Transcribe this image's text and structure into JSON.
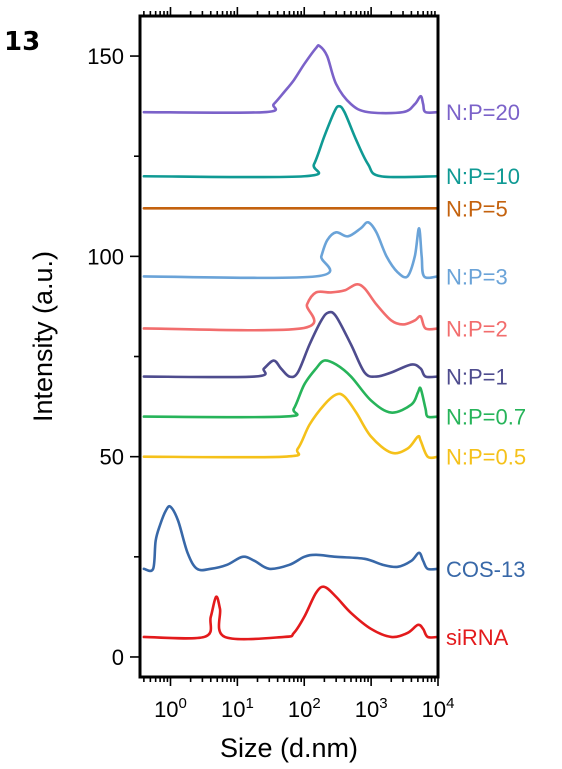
{
  "chart_data": {
    "type": "line",
    "panel_label": "13",
    "xlabel": "Size (d.nm)",
    "ylabel": "Intensity (a.u.)",
    "x_scale": "log",
    "xlim": [
      0.35,
      10000
    ],
    "ylim": [
      -5,
      160
    ],
    "x_ticks": [
      {
        "value": 1,
        "base": "10",
        "exp": "0"
      },
      {
        "value": 10,
        "base": "10",
        "exp": "1"
      },
      {
        "value": 100,
        "base": "10",
        "exp": "2"
      },
      {
        "value": 1000,
        "base": "10",
        "exp": "3"
      },
      {
        "value": 10000,
        "base": "10",
        "exp": "4"
      }
    ],
    "y_ticks": [
      {
        "value": 0,
        "label": "0"
      },
      {
        "value": 50,
        "label": "50"
      },
      {
        "value": 100,
        "label": "100"
      },
      {
        "value": 150,
        "label": "150"
      }
    ],
    "grid": false,
    "legend": "labels at right end of each curve",
    "series": [
      {
        "name": "siRNA",
        "color": "#e31a1c",
        "label_y": 5,
        "points": [
          [
            0.4,
            5
          ],
          [
            3.2,
            5
          ],
          [
            4.0,
            10
          ],
          [
            4.8,
            15
          ],
          [
            5.5,
            12
          ],
          [
            6.5,
            5
          ],
          [
            50,
            5
          ],
          [
            70,
            6
          ],
          [
            100,
            10
          ],
          [
            150,
            16
          ],
          [
            200,
            17.5
          ],
          [
            300,
            15
          ],
          [
            500,
            11
          ],
          [
            1000,
            7
          ],
          [
            2000,
            5
          ],
          [
            3500,
            6
          ],
          [
            5000,
            8
          ],
          [
            6000,
            7
          ],
          [
            7000,
            5
          ],
          [
            10000,
            5
          ]
        ]
      },
      {
        "name": "COS-13",
        "color": "#3868a8",
        "label_y": 22,
        "points": [
          [
            0.4,
            22
          ],
          [
            0.55,
            22
          ],
          [
            0.6,
            29
          ],
          [
            0.7,
            33
          ],
          [
            0.85,
            36.5
          ],
          [
            1.0,
            37.5
          ],
          [
            1.3,
            34
          ],
          [
            1.8,
            26
          ],
          [
            2.5,
            22
          ],
          [
            4,
            22
          ],
          [
            7,
            23
          ],
          [
            12,
            25
          ],
          [
            18,
            24
          ],
          [
            30,
            22
          ],
          [
            60,
            23
          ],
          [
            100,
            25
          ],
          [
            150,
            25.5
          ],
          [
            300,
            25
          ],
          [
            800,
            24.5
          ],
          [
            1500,
            23
          ],
          [
            2500,
            22.5
          ],
          [
            4000,
            24
          ],
          [
            5200,
            26
          ],
          [
            6000,
            24
          ],
          [
            7000,
            22
          ],
          [
            10000,
            22
          ]
        ]
      },
      {
        "name": "N:P=0.5",
        "color": "#f5c11a",
        "label_y": 50,
        "points": [
          [
            0.4,
            50
          ],
          [
            50,
            50
          ],
          [
            80,
            52
          ],
          [
            120,
            58
          ],
          [
            200,
            63
          ],
          [
            300,
            65.5
          ],
          [
            400,
            65
          ],
          [
            600,
            61
          ],
          [
            1000,
            55
          ],
          [
            2000,
            51
          ],
          [
            3500,
            52
          ],
          [
            5000,
            55
          ],
          [
            5500,
            54
          ],
          [
            7000,
            50
          ],
          [
            10000,
            50
          ]
        ]
      },
      {
        "name": "N:P=0.7",
        "color": "#27b45a",
        "label_y": 60,
        "points": [
          [
            0.4,
            60
          ],
          [
            50,
            60
          ],
          [
            70,
            62
          ],
          [
            100,
            68
          ],
          [
            150,
            72
          ],
          [
            200,
            74
          ],
          [
            300,
            73
          ],
          [
            500,
            70
          ],
          [
            1000,
            64
          ],
          [
            2000,
            61
          ],
          [
            4000,
            63
          ],
          [
            5000,
            66
          ],
          [
            5500,
            67
          ],
          [
            6500,
            62
          ],
          [
            7000,
            60
          ],
          [
            10000,
            60
          ]
        ]
      },
      {
        "name": "N:P=1",
        "color": "#4e4c8e",
        "label_y": 70,
        "points": [
          [
            0.4,
            70
          ],
          [
            18,
            70
          ],
          [
            25,
            72
          ],
          [
            35,
            74
          ],
          [
            45,
            72
          ],
          [
            60,
            70
          ],
          [
            80,
            71
          ],
          [
            120,
            78
          ],
          [
            180,
            84
          ],
          [
            230,
            86
          ],
          [
            300,
            85
          ],
          [
            500,
            78
          ],
          [
            800,
            71
          ],
          [
            1200,
            70
          ],
          [
            2000,
            71
          ],
          [
            4000,
            73
          ],
          [
            5500,
            72
          ],
          [
            6500,
            70
          ],
          [
            10000,
            70
          ]
        ]
      },
      {
        "name": "N:P=2",
        "color": "#f26d6d",
        "label_y": 82,
        "points": [
          [
            0.4,
            82
          ],
          [
            90,
            82
          ],
          [
            110,
            88
          ],
          [
            150,
            91
          ],
          [
            250,
            91
          ],
          [
            400,
            91.5
          ],
          [
            600,
            93
          ],
          [
            800,
            92
          ],
          [
            1200,
            88
          ],
          [
            2000,
            84
          ],
          [
            3000,
            83
          ],
          [
            4500,
            84
          ],
          [
            5500,
            85
          ],
          [
            6500,
            82
          ],
          [
            10000,
            82
          ]
        ]
      },
      {
        "name": "N:P=3",
        "color": "#6aa3d8",
        "label_y": 95,
        "points": [
          [
            0.4,
            95
          ],
          [
            150,
            95
          ],
          [
            180,
            100
          ],
          [
            220,
            104
          ],
          [
            300,
            106
          ],
          [
            450,
            105
          ],
          [
            700,
            107
          ],
          [
            900,
            108.5
          ],
          [
            1200,
            106
          ],
          [
            1700,
            100
          ],
          [
            2500,
            96
          ],
          [
            3500,
            95
          ],
          [
            4500,
            100
          ],
          [
            5200,
            107
          ],
          [
            5700,
            100
          ],
          [
            6200,
            95
          ],
          [
            10000,
            95
          ]
        ]
      },
      {
        "name": "N:P=5",
        "color": "#c4620e",
        "label_y": 112,
        "points": [
          [
            0.4,
            112
          ],
          [
            10000,
            112
          ]
        ]
      },
      {
        "name": "N:P=10",
        "color": "#0f9a94",
        "label_y": 120,
        "points": [
          [
            0.4,
            120
          ],
          [
            100,
            120
          ],
          [
            140,
            123
          ],
          [
            200,
            130
          ],
          [
            280,
            136
          ],
          [
            330,
            137.5
          ],
          [
            400,
            136
          ],
          [
            600,
            129
          ],
          [
            900,
            123
          ],
          [
            1400,
            120
          ],
          [
            10000,
            120
          ]
        ]
      },
      {
        "name": "N:P=20",
        "color": "#7b62c9",
        "label_y": 136,
        "points": [
          [
            0.4,
            136
          ],
          [
            25,
            136
          ],
          [
            35,
            138
          ],
          [
            50,
            141
          ],
          [
            70,
            144
          ],
          [
            100,
            148
          ],
          [
            150,
            152
          ],
          [
            170,
            152.5
          ],
          [
            220,
            150
          ],
          [
            300,
            143
          ],
          [
            500,
            138
          ],
          [
            900,
            136
          ],
          [
            3000,
            136
          ],
          [
            4500,
            138
          ],
          [
            5500,
            140
          ],
          [
            6000,
            138
          ],
          [
            6500,
            136
          ],
          [
            10000,
            136
          ]
        ]
      }
    ]
  }
}
